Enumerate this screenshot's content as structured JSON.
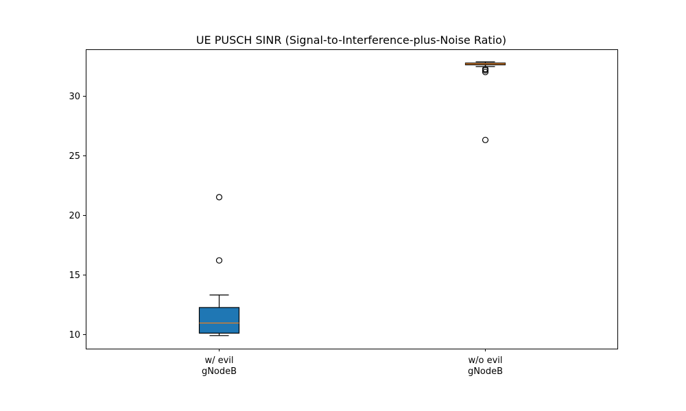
{
  "chart_data": {
    "type": "box",
    "title": "UE PUSCH SINR (Signal-to-Interference-plus-Noise Ratio)",
    "xlabel": "",
    "ylabel": "",
    "ylim": [
      8.8,
      33.9
    ],
    "yticks": [
      10,
      15,
      20,
      25,
      30
    ],
    "grid": false,
    "categories": [
      {
        "line1": "w/ evil",
        "line2": "gNodeB"
      },
      {
        "line1": "w/o evil",
        "line2": "gNodeB"
      }
    ],
    "boxes": [
      {
        "name": "w/ evil gNodeB",
        "whisker_low": 9.9,
        "q1": 10.1,
        "median": 10.95,
        "q3": 12.25,
        "whisker_high": 13.3,
        "fliers": [
          16.2,
          21.5
        ]
      },
      {
        "name": "w/o evil gNodeB",
        "whisker_low": 32.45,
        "q1": 32.6,
        "median": 32.68,
        "q3": 32.75,
        "whisker_high": 32.85,
        "fliers": [
          32.0,
          32.15,
          32.25,
          26.3
        ]
      }
    ],
    "colors": {
      "box_fill": "#1f77b4",
      "box_edge": "#000000",
      "median": "#ff7f0e",
      "flier": "#000000"
    }
  }
}
